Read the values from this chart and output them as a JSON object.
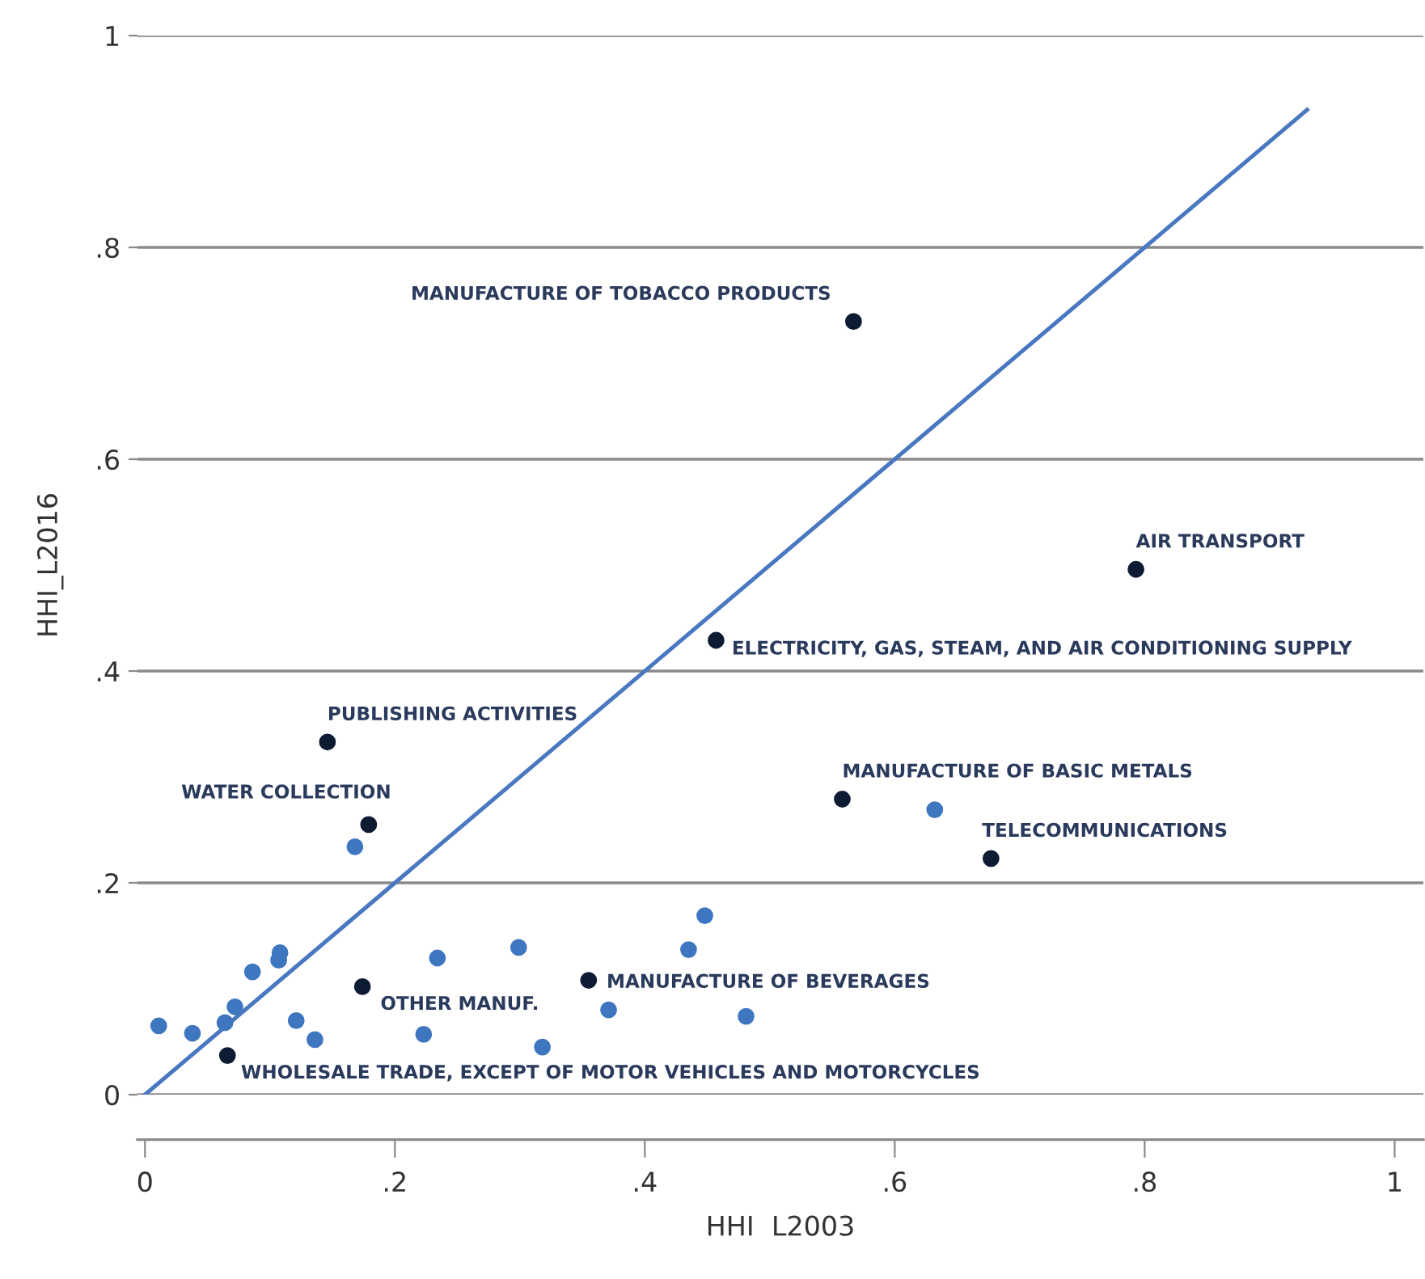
{
  "chart_data": {
    "type": "scatter",
    "xlabel": "HHI  L2003",
    "ylabel": "HHI_L2016",
    "xlim": [
      -0.006,
      1.023
    ],
    "ylim": [
      0,
      1
    ],
    "xticks": [
      0,
      {
        "value": 0.2,
        "label": ".2"
      },
      {
        "value": 0.4,
        "label": ".4"
      },
      {
        "value": 0.6,
        "label": ".6"
      },
      {
        "value": 0.8,
        "label": ".8"
      },
      1
    ],
    "yticks": [
      0,
      {
        "value": 0.2,
        "label": ".2"
      },
      {
        "value": 0.4,
        "label": ".4"
      },
      {
        "value": 0.6,
        "label": ".6"
      },
      {
        "value": 0.8,
        "label": ".8"
      },
      1
    ],
    "grid": "y",
    "legend": false,
    "marker": "circle",
    "series": [
      {
        "color": "#3f76c0",
        "x": [
          0.011,
          0.038,
          0.064,
          0.072,
          0.086,
          0.108,
          0.107,
          0.121,
          0.136,
          0.234,
          0.223,
          0.299,
          0.318,
          0.371,
          0.435,
          0.448,
          0.481,
          0.168,
          0.632
        ],
        "values": [
          0.065,
          0.058,
          0.068,
          0.083,
          0.116,
          0.134,
          0.127,
          0.07,
          0.052,
          0.129,
          0.057,
          0.139,
          0.045,
          0.08,
          0.137,
          0.169,
          0.074,
          0.234,
          0.269
        ]
      },
      {
        "color": "#0d1b33",
        "x": [
          0.567,
          0.793,
          0.457,
          0.146,
          0.179,
          0.558,
          0.677,
          0.174,
          0.355,
          0.066
        ],
        "values": [
          0.73,
          0.496,
          0.429,
          0.333,
          0.255,
          0.279,
          0.223,
          0.102,
          0.108,
          0.037
        ]
      },
      {
        "type": "line",
        "color": "#4a78c0",
        "marker": "none",
        "line_style": "solid",
        "x": [
          0,
          0.93
        ],
        "values": [
          0,
          0.93
        ]
      }
    ],
    "annotations": [
      {
        "text": "MANUFACTURE OF TOBACCO PRODUCTS",
        "x": 0.567,
        "y": 0.73
      },
      {
        "text": "AIR TRANSPORT",
        "x": 0.793,
        "y": 0.496
      },
      {
        "text": "ELECTRICITY, GAS, STEAM, AND AIR CONDITIONING SUPPLY",
        "x": 0.457,
        "y": 0.429
      },
      {
        "text": "PUBLISHING ACTIVITIES",
        "x": 0.146,
        "y": 0.333
      },
      {
        "text": "WATER COLLECTION",
        "x": 0.179,
        "y": 0.255
      },
      {
        "text": "MANUFACTURE OF BASIC METALS",
        "x": 0.558,
        "y": 0.279
      },
      {
        "text": "TELECOMMUNICATIONS",
        "x": 0.677,
        "y": 0.223
      },
      {
        "text": "OTHER MANUF.",
        "x": 0.174,
        "y": 0.102
      },
      {
        "text": "MANUFACTURE OF BEVERAGES",
        "x": 0.355,
        "y": 0.108
      },
      {
        "text": "WHOLESALE TRADE, EXCEPT OF MOTOR VEHICLES AND MOTORCYCLES",
        "x": 0.066,
        "y": 0.037
      }
    ]
  }
}
